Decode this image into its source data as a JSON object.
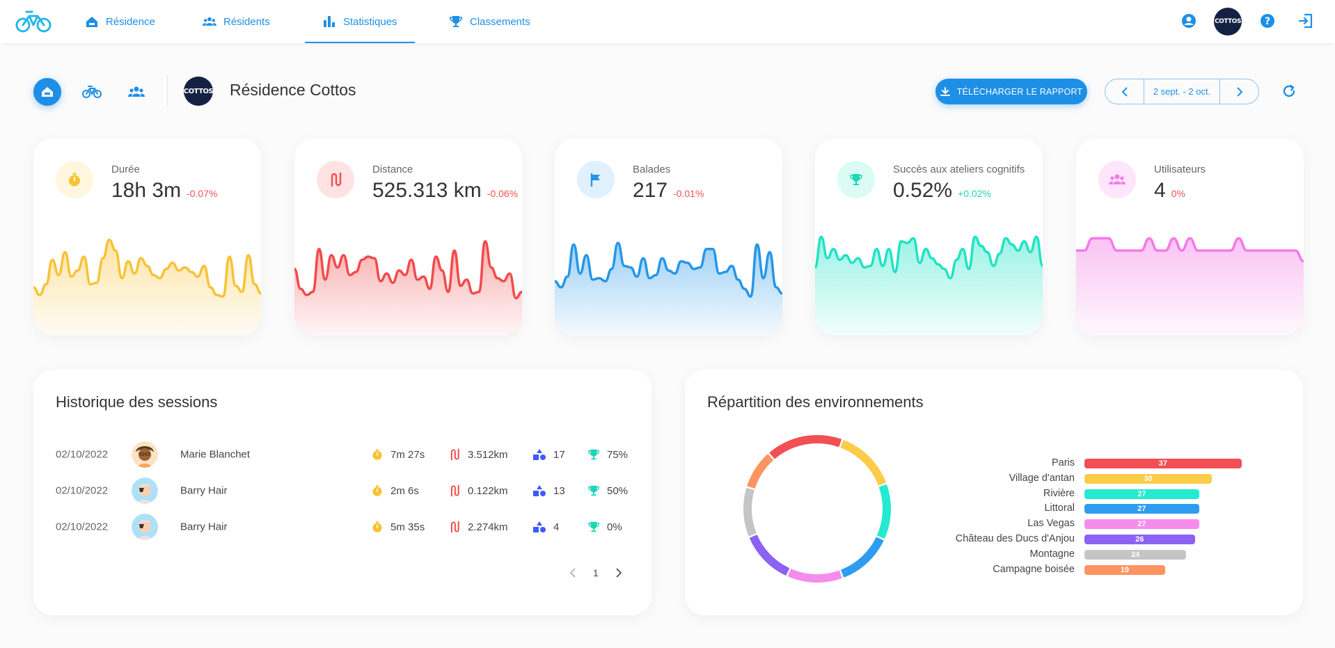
{
  "nav": {
    "items": [
      {
        "label": "Résidence",
        "icon": "home-icon"
      },
      {
        "label": "Résidents",
        "icon": "users-icon"
      },
      {
        "label": "Statistiques",
        "icon": "bar-chart-icon",
        "active": true
      },
      {
        "label": "Classements",
        "icon": "trophy-icon"
      }
    ],
    "brand_badge": "COTTOS"
  },
  "header": {
    "residence_badge": "COTTOS",
    "residence_name": "Résidence Cottos",
    "report_button": "TÉLÉCHARGER LE RAPPORT",
    "date_range": "2 sept. - 2 oct."
  },
  "stats": [
    {
      "label": "Durée",
      "value": "18h 3m",
      "delta": "-0.07%",
      "color": "#f7c235",
      "delta_color": "#ef5350",
      "icon": "stopwatch-icon"
    },
    {
      "label": "Distance",
      "value": "525.313 km",
      "delta": "-0.06%",
      "color": "#f24a4a",
      "delta_color": "#ef5350",
      "icon": "route-icon"
    },
    {
      "label": "Balades",
      "value": "217",
      "delta": "-0.01%",
      "color": "#2596e8",
      "delta_color": "#ef5350",
      "icon": "flag-icon"
    },
    {
      "label": "Succès aux ateliers cognitifs",
      "value": "0.52%",
      "delta": "+0.02%",
      "color": "#1fe3c4",
      "delta_color": "#1fd4b5",
      "icon": "trophy-icon"
    },
    {
      "label": "Utilisateurs",
      "value": "4",
      "delta": "0%",
      "color": "#f37ae6",
      "delta_color": "#ef5350",
      "icon": "users-icon"
    }
  ],
  "sessions": {
    "title": "Historique des sessions",
    "rows": [
      {
        "date": "02/10/2022",
        "name": "Marie Blanchet",
        "duration": "7m 27s",
        "distance": "3.512km",
        "shapes": "17",
        "success": "75%"
      },
      {
        "date": "02/10/2022",
        "name": "Barry Hair",
        "duration": "2m 6s",
        "distance": "0.122km",
        "shapes": "13",
        "success": "50%"
      },
      {
        "date": "02/10/2022",
        "name": "Barry Hair",
        "duration": "5m 35s",
        "distance": "2.274km",
        "shapes": "4",
        "success": "0%"
      }
    ],
    "page": "1"
  },
  "environments": {
    "title": "Répartition des environnements",
    "items": [
      {
        "label": "Paris",
        "value": 37,
        "color": "#f24f54"
      },
      {
        "label": "Village d'antan",
        "value": 30,
        "color": "#fbcc49"
      },
      {
        "label": "Rivière",
        "value": 27,
        "color": "#23ead0"
      },
      {
        "label": "Littoral",
        "value": 27,
        "color": "#2f9cf0"
      },
      {
        "label": "Las Vegas",
        "value": 27,
        "color": "#f58ceb"
      },
      {
        "label": "Château des Ducs d'Anjou",
        "value": 26,
        "color": "#8b62f1"
      },
      {
        "label": "Montagne",
        "value": 24,
        "color": "#c5c5c5"
      },
      {
        "label": "Campagne boisée",
        "value": 19,
        "color": "#fb9460"
      }
    ]
  },
  "chart_data": [
    {
      "type": "area",
      "series": [
        {
          "values": [
            22,
            12,
            26,
            58,
            38,
            68,
            36,
            44,
            62,
            26,
            28,
            60,
            84,
            70,
            34,
            56,
            40,
            60,
            50,
            38,
            34,
            46,
            54,
            44,
            48,
            42,
            36,
            50,
            22,
            12,
            10,
            62,
            24,
            16,
            64,
            26,
            14
          ]
        }
      ]
    },
    {
      "type": "area",
      "series": [
        {
          "values": [
            46,
            20,
            12,
            16,
            72,
            32,
            64,
            48,
            64,
            38,
            42,
            58,
            62,
            60,
            30,
            40,
            28,
            44,
            38,
            58,
            32,
            36,
            20,
            62,
            44,
            16,
            70,
            24,
            32,
            14,
            16,
            82,
            48,
            34,
            30,
            40,
            8,
            16
          ]
        }
      ]
    },
    {
      "type": "area",
      "series": [
        {
          "values": [
            30,
            22,
            36,
            78,
            40,
            64,
            32,
            34,
            30,
            46,
            80,
            50,
            48,
            36,
            60,
            34,
            38,
            60,
            44,
            40,
            56,
            54,
            46,
            48,
            72,
            72,
            40,
            42,
            50,
            32,
            20,
            10,
            78,
            34,
            68,
            22,
            14
          ]
        }
      ]
    },
    {
      "type": "area",
      "series": [
        {
          "values": [
            48,
            88,
            60,
            72,
            58,
            64,
            54,
            60,
            48,
            50,
            72,
            50,
            72,
            42,
            82,
            80,
            86,
            54,
            72,
            60,
            52,
            46,
            34,
            58,
            72,
            46,
            88,
            76,
            68,
            50,
            66,
            86,
            78,
            70,
            82,
            68,
            88,
            50
          ]
        }
      ]
    },
    {
      "type": "area",
      "series": [
        {
          "values": [
            70,
            70,
            86,
            86,
            86,
            70,
            70,
            70,
            70,
            86,
            70,
            70,
            86,
            70,
            86,
            70,
            70,
            70,
            70,
            70,
            86,
            70,
            70,
            70,
            70,
            70,
            70,
            70,
            56
          ]
        }
      ]
    }
  ]
}
